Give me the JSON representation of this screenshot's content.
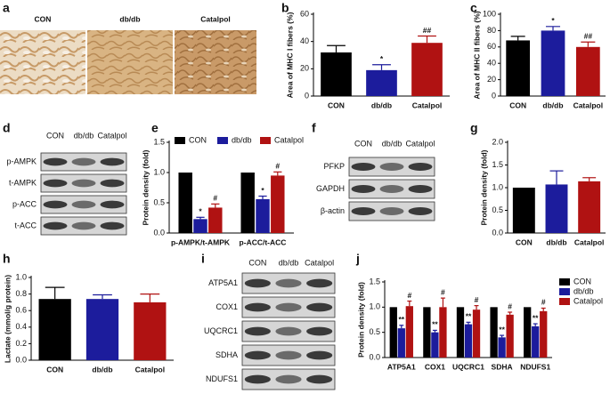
{
  "micrographs": {
    "panel": "a",
    "labels": [
      "CON",
      "db/db",
      "Catalpol"
    ]
  },
  "chart_data": [
    {
      "type": "bar",
      "panel": "b",
      "ylabel": "Area of MHC I fibers (%)",
      "categories": [
        "CON",
        "db/db",
        "Catalpol"
      ],
      "values": [
        32,
        19,
        39
      ],
      "errors": [
        5,
        4,
        5
      ],
      "colors": [
        "#000000",
        "#1c1c9c",
        "#b01212"
      ],
      "annotations": [
        null,
        "*",
        "##"
      ],
      "ylim": [
        0,
        60
      ],
      "yticks": [
        0,
        20,
        40,
        60
      ]
    },
    {
      "type": "bar",
      "panel": "c",
      "ylabel": "Area of MHC II fibers (%)",
      "categories": [
        "CON",
        "db/db",
        "Catalpol"
      ],
      "values": [
        68,
        80,
        60
      ],
      "errors": [
        5,
        5,
        6
      ],
      "colors": [
        "#000000",
        "#1c1c9c",
        "#b01212"
      ],
      "annotations": [
        null,
        "*",
        "##"
      ],
      "ylim": [
        0,
        100
      ],
      "yticks": [
        0,
        20,
        40,
        60,
        80,
        100
      ]
    },
    {
      "type": "groupedbar",
      "panel": "e",
      "ylabel": "Protein density (fold)",
      "categories": [
        "p-AMPK/t-AMPK",
        "p-ACC/t-ACC"
      ],
      "legend": "top",
      "series": [
        {
          "name": "CON",
          "color": "#000000",
          "values": [
            1.0,
            1.0
          ],
          "errors": [
            0,
            0
          ]
        },
        {
          "name": "db/db",
          "color": "#1c1c9c",
          "values": [
            0.23,
            0.56
          ],
          "errors": [
            0.03,
            0.05
          ],
          "annotations": [
            "*",
            "*"
          ]
        },
        {
          "name": "Catalpol",
          "color": "#b01212",
          "values": [
            0.42,
            0.95
          ],
          "errors": [
            0.06,
            0.06
          ],
          "annotations": [
            "#",
            "#"
          ]
        }
      ],
      "ylim": [
        0,
        1.5
      ],
      "yticks": [
        {
          "value": 0,
          "label": "0.0"
        },
        0.5,
        {
          "value": 1,
          "label": "1.0"
        },
        1.5
      ]
    },
    {
      "type": "bar",
      "panel": "g",
      "ylabel": "Protein density (fold)",
      "categories": [
        "CON",
        "db/db",
        "Catalpol"
      ],
      "values": [
        1.0,
        1.07,
        1.14
      ],
      "errors": [
        0,
        0.3,
        0.08
      ],
      "colors": [
        "#000000",
        "#1c1c9c",
        "#b01212"
      ],
      "ylim": [
        0,
        2.0
      ],
      "yticks": [
        {
          "value": 0,
          "label": "0.0"
        },
        0.5,
        {
          "value": 1,
          "label": "1.0"
        },
        1.5,
        {
          "value": 2,
          "label": "2.0"
        }
      ]
    },
    {
      "type": "bar",
      "panel": "h",
      "ylabel": "Lactate (mmol/g protein)",
      "categories": [
        "CON",
        "db/db",
        "Catalpol"
      ],
      "values": [
        0.74,
        0.74,
        0.7
      ],
      "errors": [
        0.14,
        0.05,
        0.1
      ],
      "colors": [
        "#000000",
        "#1c1c9c",
        "#b01212"
      ],
      "ylim": [
        0,
        1.0
      ],
      "yticks": [
        {
          "value": 0,
          "label": "0.0"
        },
        0.2,
        0.4,
        0.6,
        0.8,
        {
          "value": 1,
          "label": "1.0"
        }
      ]
    },
    {
      "type": "groupedbar",
      "panel": "j",
      "ylabel": "Protein density (fold)",
      "categories": [
        "ATP5A1",
        "COX1",
        "UQCRC1",
        "SDHA",
        "NDUFS1"
      ],
      "legend": "right",
      "series": [
        {
          "name": "CON",
          "color": "#000000",
          "values": [
            1,
            1,
            1,
            1,
            1
          ],
          "errors": [
            0,
            0,
            0,
            0,
            0
          ]
        },
        {
          "name": "db/db",
          "color": "#1c1c9c",
          "values": [
            0.58,
            0.5,
            0.66,
            0.4,
            0.62
          ],
          "errors": [
            0.06,
            0.04,
            0.04,
            0.04,
            0.05
          ],
          "annotations": [
            "**",
            "**",
            "**",
            "**",
            "**"
          ]
        },
        {
          "name": "Catalpol",
          "color": "#b01212",
          "values": [
            1.02,
            1.0,
            0.95,
            0.85,
            0.92
          ],
          "errors": [
            0.1,
            0.18,
            0.08,
            0.05,
            0.06
          ],
          "annotations": [
            "#",
            "#",
            "#",
            "#",
            "#"
          ]
        }
      ],
      "ylim": [
        0,
        1.5
      ],
      "yticks": [
        {
          "value": 0,
          "label": "0.0"
        },
        0.5,
        {
          "value": 1,
          "label": "1.0"
        },
        1.5
      ]
    }
  ],
  "blots": [
    {
      "panel": "d",
      "lanes": [
        "CON",
        "db/db",
        "Catalpol"
      ],
      "rows": [
        "p-AMPK",
        "t-AMPK",
        "p-ACC",
        "t-ACC"
      ]
    },
    {
      "panel": "f",
      "lanes": [
        "CON",
        "db/db",
        "Catalpol"
      ],
      "rows": [
        "PFKP",
        "GAPDH",
        "β-actin"
      ]
    },
    {
      "panel": "i",
      "lanes": [
        "CON",
        "db/db",
        "Catalpol"
      ],
      "rows": [
        "ATP5A1",
        "COX1",
        "UQCRC1",
        "SDHA",
        "NDUFS1"
      ]
    }
  ]
}
